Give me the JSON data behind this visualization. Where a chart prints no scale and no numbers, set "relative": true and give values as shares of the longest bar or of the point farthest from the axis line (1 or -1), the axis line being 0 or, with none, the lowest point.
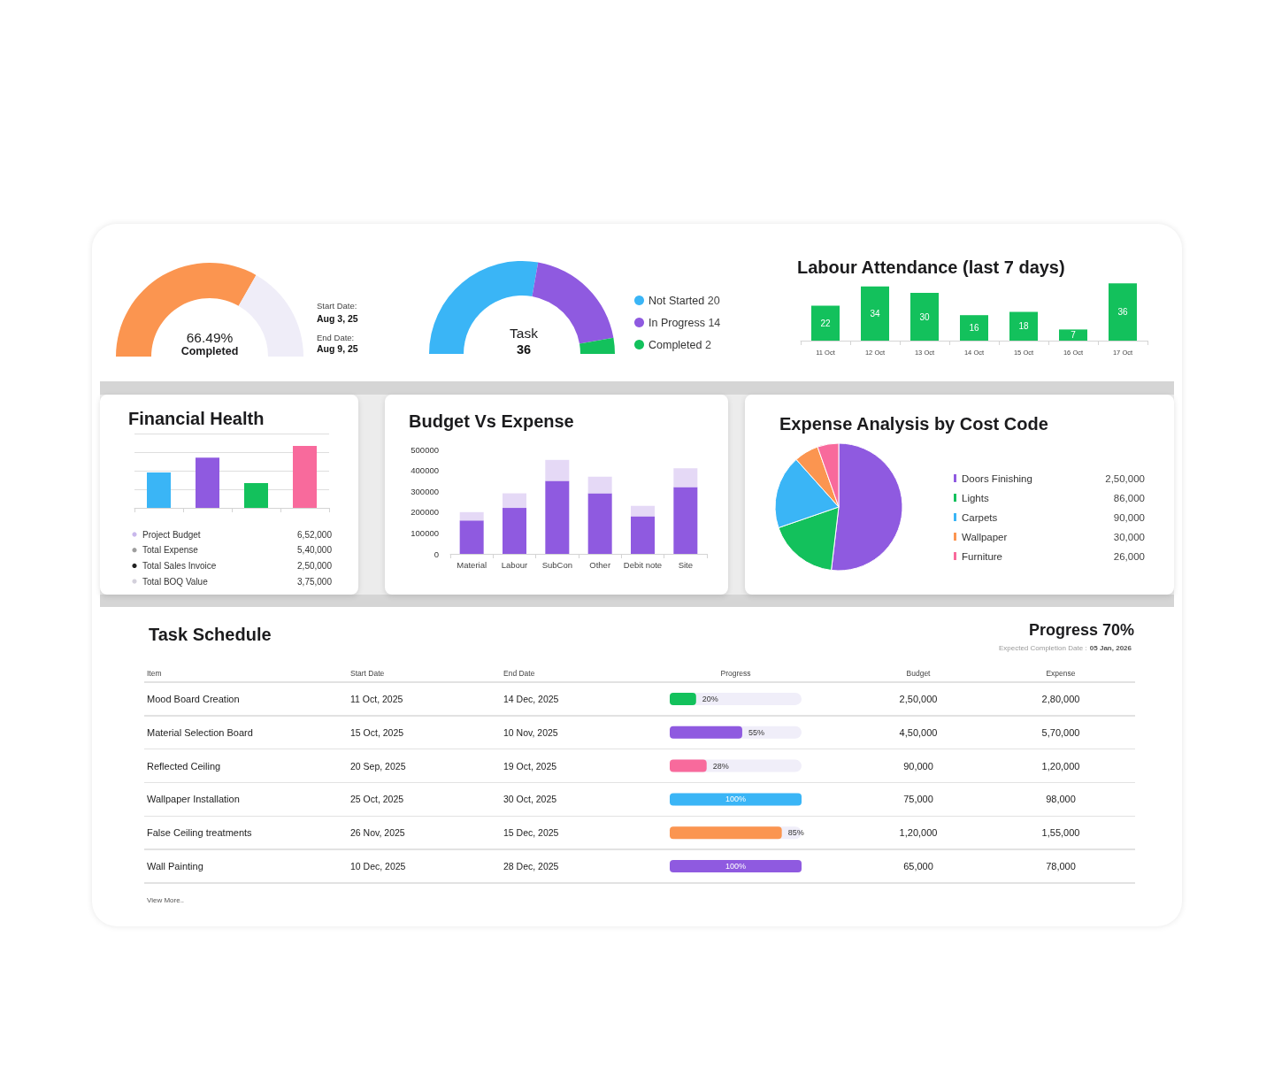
{
  "chart_data": [
    {
      "type": "donut",
      "categories": [
        "Completed",
        null
      ],
      "values": [
        66.49,
        33.51
      ],
      "colors": [
        "#fb9550",
        "#efedf8"
      ],
      "value_labels": [
        "66.49%",
        null
      ],
      "annotations": [
        "Start Date:",
        "Aug 3, 25",
        "End Date:",
        "Aug 9, 25"
      ]
    },
    {
      "type": "donut",
      "title": "Task",
      "categories": [
        "Not Started",
        "In Progress",
        "Completed"
      ],
      "values": [
        20,
        14,
        2
      ],
      "colors": [
        "#3ab5f6",
        "#8f5ae0",
        "#13c15c"
      ],
      "legend": "right",
      "value_labels": [
        "20",
        "14",
        "2"
      ],
      "annotations": [
        "36"
      ]
    },
    {
      "type": "bar",
      "title": "Labour Attendance (last 7 days)",
      "categories": [
        "11 Oct",
        "12 Oct",
        "13 Oct",
        "14 Oct",
        "15 Oct",
        "16 Oct",
        "17 Oct"
      ],
      "values": [
        22,
        34,
        30,
        16,
        18,
        7,
        36
      ],
      "color": "#13c15c",
      "data_labels": true,
      "tick_labels": "x"
    },
    {
      "type": "bar",
      "title": "Financial Health",
      "categories": [
        null,
        null,
        null,
        null
      ],
      "values": [
        0.57,
        0.81,
        0.4,
        1
      ],
      "colors": [
        "#3ab5f6",
        "#8f5ae0",
        "#13c15c",
        "#f86a9c"
      ],
      "relative": true,
      "grid": "y",
      "tick_labels": false
    },
    {
      "type": "other",
      "categories": [
        "Project Budget",
        "Total Expense",
        "Total Sales Invoice",
        "Total BOQ Value"
      ],
      "values": [
        652000,
        540000,
        250000,
        375000
      ],
      "colors": [
        "#c9b8ec",
        "#9e9e9e",
        "#222222",
        "#d3d0db"
      ],
      "value_labels": [
        "6,52,000",
        "5,40,000",
        "2,50,000",
        "3,75,000"
      ]
    },
    {
      "type": "bar",
      "title": "Budget Vs Expense",
      "categories": [
        "Material",
        "Labour",
        "SubCon",
        "Other",
        "Debit note",
        "Site"
      ],
      "series": [
        {
          "color": "#8f5ae0",
          "values": [
            160000,
            220000,
            350000,
            290000,
            180000,
            320000
          ]
        },
        {
          "color": "#e5d9f6",
          "values": [
            40000,
            70000,
            100000,
            80000,
            50000,
            90000
          ]
        }
      ],
      "stacked": true,
      "ylim": [
        0,
        500000
      ],
      "yticks": [
        0,
        100000,
        200000,
        300000,
        400000,
        500000
      ]
    },
    {
      "type": "pie",
      "title": "Expense Analysis by Cost Code",
      "categories": [
        "Doors Finishing",
        "Lights",
        "Carpets",
        "Wallpaper",
        "Furniture"
      ],
      "values": [
        250000,
        86000,
        90000,
        30000,
        26000
      ],
      "colors": [
        "#8f5ae0",
        "#13c15c",
        "#3ab5f6",
        "#fb9550",
        "#f86a9c"
      ],
      "legend": "right",
      "value_labels": [
        "2,50,000",
        "86,000",
        "90,000",
        "30,000",
        "26,000"
      ]
    },
    {
      "type": "bar",
      "orientation": "horizontal",
      "title": "Task Schedule",
      "xlabel": "Progress",
      "ylabel": "Item",
      "categories": [
        "Mood Board Creation",
        "Material Selection Board",
        "Reflected Ceiling",
        "Wallpaper Installation",
        "False Ceiling treatments",
        "Wall Painting"
      ],
      "values": [
        20,
        55,
        28,
        100,
        85,
        100
      ],
      "colors": [
        "#13c15c",
        "#8f5ae0",
        "#f86a9c",
        "#3ab5f6",
        "#fb9550",
        "#8f5ae0"
      ],
      "value_labels": [
        "20%",
        "55%",
        "28%",
        "100%",
        "85%",
        "100%"
      ],
      "xlim": [
        0,
        100
      ],
      "tick_labels": "y",
      "annotations": [
        "Progress 70%",
        "Expected Completion Date :",
        "05 Jan, 2026",
        "Start Date",
        "End Date",
        "Budget",
        "Expense",
        "11 Oct, 2025",
        "14 Dec, 2025",
        "2,50,000",
        "2,80,000",
        "15 Oct, 2025",
        "10 Nov, 2025",
        "4,50,000",
        "5,70,000",
        "20 Sep, 2025",
        "19 Oct, 2025",
        "90,000",
        "1,20,000",
        "25 Oct, 2025",
        "30 Oct, 2025",
        "75,000",
        "98,000",
        "26 Nov, 2025",
        "15 Dec, 2025",
        "1,20,000",
        "1,55,000",
        "10 Dec, 2025",
        "28 Dec, 2025",
        "65,000",
        "78,000",
        "View More.."
      ]
    }
  ]
}
